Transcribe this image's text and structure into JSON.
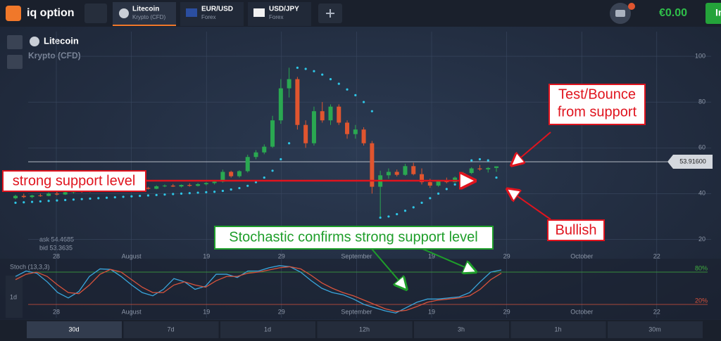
{
  "header": {
    "logo": "iq option",
    "tabs": [
      {
        "title": "Litecoin",
        "subtitle": "Krypto (CFD)"
      },
      {
        "title": "EUR/USD",
        "subtitle": "Forex"
      },
      {
        "title": "USD/JPY",
        "subtitle": "Forex"
      }
    ],
    "balance": "€0.00",
    "button": "In"
  },
  "asset": {
    "name": "Litecoin",
    "category": "Krypto (CFD)",
    "ask": "ask 54.4685",
    "bid": "bid 53.3635"
  },
  "price_chart": {
    "type": "candlestick",
    "ylim": [
      14,
      108
    ],
    "yticks": [
      20,
      40,
      60,
      80,
      100
    ],
    "grid": true,
    "xticks": [
      "28",
      "August",
      "19",
      "29",
      "September",
      "19",
      "29",
      "October",
      "22"
    ],
    "up_color": "#2aa851",
    "down_color": "#e0552f",
    "sar_color": "#2ec6e6",
    "current_price": {
      "value": 53.916,
      "label": "53.91600"
    },
    "support_level": 45.6,
    "candles": [
      [
        38,
        39.5,
        37.5,
        39
      ],
      [
        39,
        40,
        38,
        38.5
      ],
      [
        38.5,
        39.5,
        38,
        39.2
      ],
      [
        39.2,
        40,
        38.6,
        39
      ],
      [
        39,
        40.5,
        38.8,
        40
      ],
      [
        40,
        40.8,
        39.2,
        39.6
      ],
      [
        39.6,
        41,
        39.4,
        40.6
      ],
      [
        40.6,
        41.5,
        40,
        41.2
      ],
      [
        41.2,
        41.8,
        40.4,
        40.8
      ],
      [
        40.8,
        42.2,
        40.5,
        41.9
      ],
      [
        41.9,
        42.8,
        41.4,
        42.5
      ],
      [
        42.5,
        43.2,
        42,
        42.2
      ],
      [
        42.2,
        43,
        41.8,
        42.8
      ],
      [
        42.8,
        43.4,
        42.3,
        42.6
      ],
      [
        42.6,
        43.5,
        42.2,
        43.1
      ],
      [
        43.1,
        43.6,
        42.4,
        42.5
      ],
      [
        42.5,
        43,
        41.8,
        42.1
      ],
      [
        42.1,
        43.6,
        41.9,
        43.2
      ],
      [
        43.2,
        44,
        42.8,
        43.5
      ],
      [
        43.5,
        44.2,
        42.9,
        43.1
      ],
      [
        43.1,
        44,
        42.7,
        43.8
      ],
      [
        43.8,
        44.5,
        43,
        43.4
      ],
      [
        43.4,
        44.6,
        43.1,
        44.1
      ],
      [
        44.1,
        45,
        43.6,
        44.6
      ],
      [
        44.6,
        45.6,
        44,
        45.2
      ],
      [
        45.2,
        50.5,
        44.8,
        49.5
      ],
      [
        49.5,
        50,
        47,
        47.6
      ],
      [
        47.6,
        50.2,
        47,
        49.8
      ],
      [
        49.8,
        57,
        49.2,
        56
      ],
      [
        56,
        59,
        55,
        58
      ],
      [
        58,
        61.5,
        57.2,
        60.5
      ],
      [
        60.5,
        74,
        60,
        72
      ],
      [
        72,
        90,
        70.5,
        86
      ],
      [
        86,
        95,
        82,
        90
      ],
      [
        90,
        91,
        68,
        70
      ],
      [
        70,
        72,
        60,
        62
      ],
      [
        62,
        78,
        61,
        76
      ],
      [
        76,
        80,
        71,
        72
      ],
      [
        72,
        79,
        70,
        78
      ],
      [
        78,
        79,
        70,
        71
      ],
      [
        71,
        72,
        64,
        66
      ],
      [
        66,
        70,
        64,
        68
      ],
      [
        68,
        69,
        61,
        62
      ],
      [
        62,
        63,
        40,
        43
      ],
      [
        43,
        50,
        30,
        48
      ],
      [
        48,
        51,
        46.5,
        49.5
      ],
      [
        49.5,
        50.5,
        47.5,
        48.2
      ],
      [
        48.2,
        53,
        47.8,
        52
      ],
      [
        52,
        53.5,
        48,
        48.5
      ],
      [
        48.5,
        51,
        44,
        45
      ],
      [
        45,
        46.5,
        42.5,
        43.5
      ],
      [
        43.5,
        46,
        43,
        45.5
      ],
      [
        45.5,
        47,
        44.5,
        45
      ],
      [
        45,
        47.5,
        44.8,
        47
      ],
      [
        47,
        49.5,
        46.5,
        49
      ],
      [
        49,
        51.5,
        48.5,
        51
      ],
      [
        51,
        52.5,
        50,
        50.6
      ],
      [
        50.6,
        51.6,
        49.2,
        51.2
      ],
      [
        51.2,
        51.9,
        49.5,
        51.9
      ]
    ],
    "sar": [
      36,
      36.2,
      36.4,
      36.6,
      36.8,
      37,
      37.2,
      37.4,
      37.6,
      37.8,
      38,
      38.2,
      38.4,
      38.6,
      38.8,
      39,
      39.2,
      39.4,
      39.6,
      39.8,
      40,
      40.2,
      40.4,
      40.6,
      40.8,
      41.2,
      41.8,
      42.4,
      43.4,
      45,
      47,
      50,
      55,
      62,
      95,
      94.5,
      93.5,
      92,
      90,
      88,
      85.5,
      83,
      80,
      76,
      29.5,
      30,
      31,
      32.5,
      34,
      36,
      38,
      40,
      42,
      44,
      46,
      54.5,
      55,
      54.5,
      47
    ]
  },
  "stochastic": {
    "label": "Stoch (13,3,3)",
    "ylim": [
      0,
      100
    ],
    "levels": [
      {
        "value": 80,
        "label": "80%",
        "color": "#3fae3f"
      },
      {
        "value": 20,
        "label": "20%",
        "color": "#d9533c"
      }
    ],
    "series": [
      {
        "color": "#3aa6dc",
        "values": [
          72,
          82,
          78,
          62,
          42,
          32,
          44,
          72,
          86,
          85,
          72,
          56,
          42,
          36,
          48,
          68,
          62,
          48,
          54,
          76,
          76,
          70,
          82,
          82,
          88,
          92,
          90,
          80,
          64,
          50,
          42,
          38,
          30,
          20,
          14,
          8,
          4,
          14,
          24,
          30,
          30,
          32,
          34,
          42,
          62,
          80,
          84
        ]
      },
      {
        "color": "#d9533c",
        "values": [
          66,
          76,
          80,
          72,
          56,
          42,
          40,
          56,
          76,
          85,
          80,
          66,
          52,
          42,
          42,
          56,
          62,
          56,
          52,
          64,
          72,
          72,
          78,
          80,
          84,
          88,
          90,
          86,
          74,
          60,
          50,
          42,
          36,
          28,
          20,
          12,
          7,
          9,
          16,
          24,
          28,
          30,
          32,
          36,
          48,
          66,
          78
        ]
      }
    ]
  },
  "annotations": {
    "test_bounce": [
      "Test/Bounce",
      "from support"
    ],
    "support": "strong support level",
    "bullish": "Bullish",
    "stochastic": "Stochastic confirms strong support level"
  },
  "sidebar": {
    "period": "1d"
  },
  "timeframes": [
    "30d",
    "7d",
    "1d",
    "12h",
    "3h",
    "1h",
    "30m"
  ]
}
